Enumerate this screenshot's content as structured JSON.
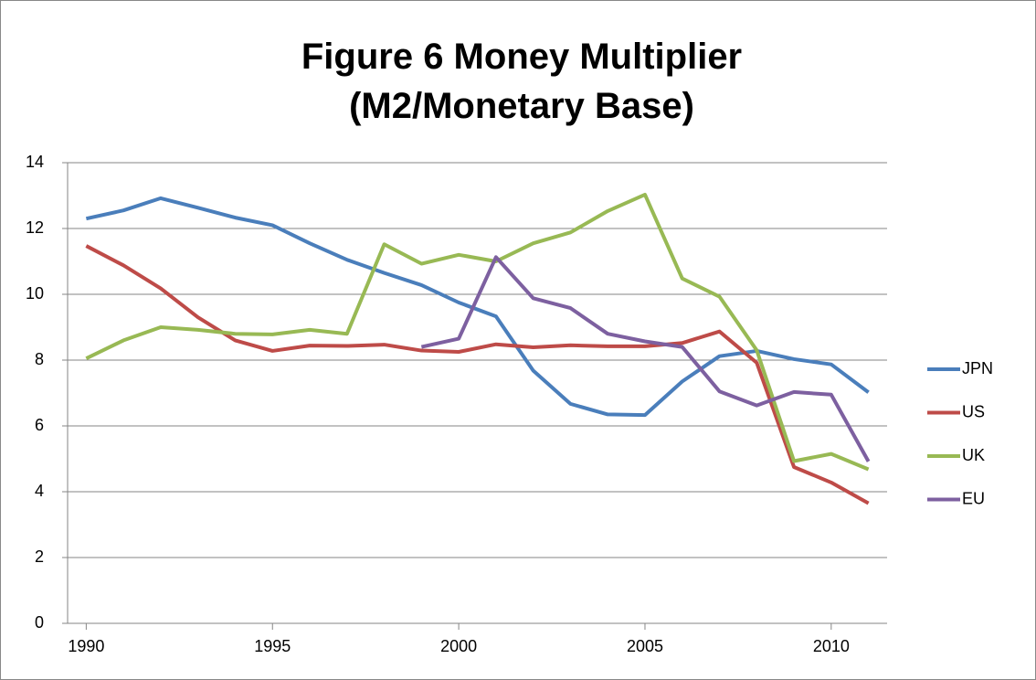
{
  "chart_data": {
    "type": "line",
    "title": "Figure 6 Money Multiplier (M2/Monetary Base)",
    "x": [
      1990,
      1991,
      1992,
      1993,
      1994,
      1995,
      1996,
      1997,
      1998,
      1999,
      2000,
      2001,
      2002,
      2003,
      2004,
      2005,
      2006,
      2007,
      2008,
      2009,
      2010,
      2011
    ],
    "series": [
      {
        "name": "JPN",
        "color": "#4a7ebb",
        "values": [
          12.3,
          12.55,
          12.92,
          12.63,
          12.33,
          12.1,
          11.55,
          11.05,
          10.65,
          10.28,
          9.75,
          9.33,
          7.68,
          6.67,
          6.35,
          6.33,
          7.35,
          8.12,
          8.28,
          8.03,
          7.87,
          7.02
        ]
      },
      {
        "name": "US",
        "color": "#be4b48",
        "values": [
          11.47,
          10.88,
          10.18,
          9.3,
          8.6,
          8.28,
          8.44,
          8.43,
          8.47,
          8.29,
          8.25,
          8.48,
          8.39,
          8.45,
          8.42,
          8.42,
          8.52,
          8.87,
          7.92,
          4.75,
          4.28,
          3.65
        ]
      },
      {
        "name": "UK",
        "color": "#98b954",
        "values": [
          8.05,
          8.6,
          9.0,
          8.92,
          8.8,
          8.78,
          8.92,
          8.8,
          11.52,
          10.93,
          11.2,
          11.0,
          11.55,
          11.88,
          12.53,
          13.03,
          10.48,
          9.93,
          8.3,
          4.93,
          5.15,
          4.68
        ]
      },
      {
        "name": "EU",
        "color": "#7d60a0",
        "values": [
          null,
          null,
          null,
          null,
          null,
          null,
          null,
          null,
          null,
          8.4,
          8.65,
          11.13,
          9.88,
          9.58,
          8.8,
          8.57,
          8.4,
          7.05,
          6.62,
          7.03,
          6.95,
          4.92
        ]
      }
    ],
    "xlim": [
      1989.5,
      2011.5
    ],
    "xticks": [
      1990,
      1995,
      2000,
      2005,
      2010
    ],
    "ylim": [
      0,
      14
    ],
    "yticks": [
      0,
      2,
      4,
      6,
      8,
      10,
      12,
      14
    ],
    "grid": true,
    "legend": "right"
  }
}
